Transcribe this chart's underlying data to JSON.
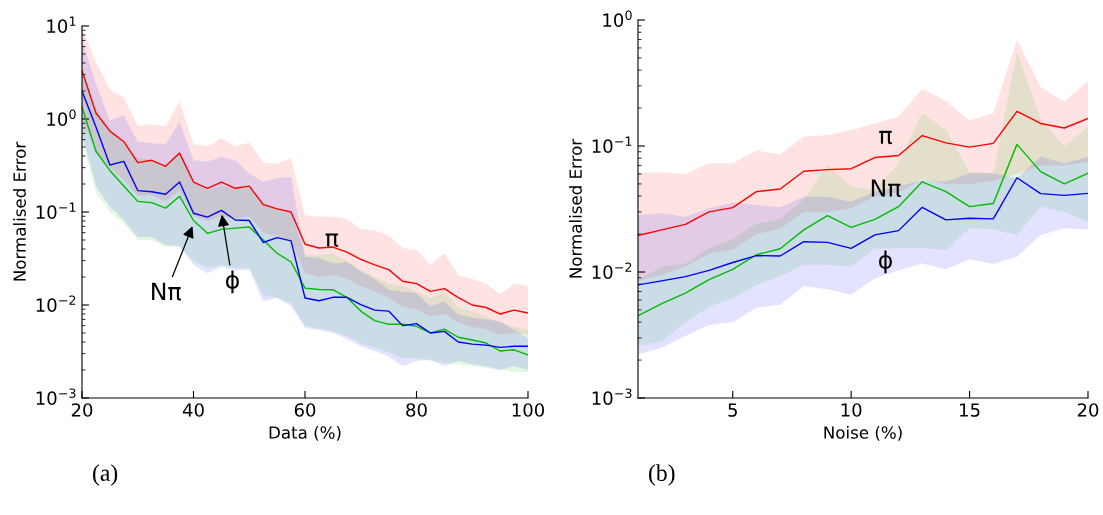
{
  "chart_data": [
    {
      "type": "line",
      "xlabel": "Data (%)",
      "ylabel": "Normalised Error",
      "log": "y",
      "line_style": "solid",
      "marker": "none",
      "x": [
        20,
        22.5,
        25,
        27.5,
        30,
        32.5,
        35,
        37.5,
        40,
        42.5,
        45,
        47.5,
        50,
        52.5,
        55,
        57.5,
        60,
        62.5,
        65,
        67.5,
        70,
        72.5,
        75,
        77.5,
        80,
        82.5,
        85,
        87.5,
        90,
        92.5,
        95,
        97.5,
        100
      ],
      "xlim": [
        20,
        100
      ],
      "xticks": [
        20,
        40,
        60,
        80,
        100
      ],
      "ylim": [
        0.001,
        10
      ],
      "yticks": [
        {
          "value": 0.001,
          "label": "10$^{−3}$"
        },
        {
          "value": 0.01,
          "label": "10$^{−2}$"
        },
        {
          "value": 0.1,
          "label": "10$^{−1}$"
        },
        {
          "value": 1,
          "label": "10$^{0}$"
        },
        {
          "value": 10,
          "label": "10$^{1}$"
        }
      ],
      "series": [
        {
          "color": "#ff0000",
          "values": [
            3.3,
            1.16,
            0.74,
            0.57,
            0.34,
            0.36,
            0.31,
            0.43,
            0.21,
            0.18,
            0.21,
            0.18,
            0.19,
            0.12,
            0.108,
            0.1,
            0.045,
            0.041,
            0.042,
            0.037,
            0.031,
            0.027,
            0.024,
            0.018,
            0.017,
            0.014,
            0.015,
            0.012,
            0.01,
            0.0094,
            0.008,
            0.0088,
            0.0082
          ],
          "upper": [
            9.5,
            4.1,
            2.1,
            1.7,
            0.85,
            0.88,
            0.83,
            1.56,
            0.54,
            0.51,
            0.62,
            0.51,
            0.56,
            0.34,
            0.33,
            0.38,
            0.093,
            0.089,
            0.089,
            0.084,
            0.066,
            0.063,
            0.056,
            0.041,
            0.039,
            0.027,
            0.036,
            0.021,
            0.019,
            0.017,
            0.013,
            0.017,
            0.016
          ],
          "lower": [
            1.0,
            0.45,
            0.3,
            0.22,
            0.15,
            0.15,
            0.13,
            0.17,
            0.09,
            0.08,
            0.09,
            0.085,
            0.09,
            0.06,
            0.055,
            0.05,
            0.022,
            0.02,
            0.021,
            0.019,
            0.016,
            0.014,
            0.012,
            0.0095,
            0.009,
            0.0075,
            0.008,
            0.0065,
            0.0058,
            0.0055,
            0.0048,
            0.005,
            0.0048
          ]
        },
        {
          "color": "#00bb00",
          "values": [
            1.35,
            0.45,
            0.28,
            0.19,
            0.13,
            0.126,
            0.11,
            0.148,
            0.081,
            0.059,
            0.065,
            0.067,
            0.069,
            0.05,
            0.036,
            0.029,
            0.0152,
            0.0147,
            0.0146,
            0.0121,
            0.0086,
            0.0068,
            0.0062,
            0.0062,
            0.0059,
            0.005,
            0.0055,
            0.0045,
            0.0042,
            0.0039,
            0.0032,
            0.0033,
            0.0029
          ],
          "upper": [
            3.5,
            1.3,
            0.75,
            0.55,
            0.38,
            0.36,
            0.32,
            0.45,
            0.21,
            0.17,
            0.19,
            0.18,
            0.19,
            0.13,
            0.11,
            0.1,
            0.035,
            0.034,
            0.036,
            0.03,
            0.024,
            0.02,
            0.017,
            0.016,
            0.014,
            0.012,
            0.014,
            0.0095,
            0.0085,
            0.0075,
            0.0065,
            0.0058,
            0.0055
          ],
          "lower": [
            0.6,
            0.16,
            0.1,
            0.075,
            0.05,
            0.05,
            0.042,
            0.042,
            0.03,
            0.025,
            0.027,
            0.025,
            0.025,
            0.013,
            0.012,
            0.0105,
            0.006,
            0.0056,
            0.0052,
            0.0046,
            0.0039,
            0.0035,
            0.0031,
            0.0027,
            0.0027,
            0.0025,
            0.0024,
            0.0023,
            0.0022,
            0.0021,
            0.002,
            0.0019,
            0.0019
          ]
        },
        {
          "color": "#0000ff",
          "values": [
            2.0,
            0.82,
            0.32,
            0.35,
            0.17,
            0.165,
            0.155,
            0.21,
            0.097,
            0.088,
            0.104,
            0.082,
            0.081,
            0.047,
            0.053,
            0.049,
            0.0119,
            0.0111,
            0.0121,
            0.0121,
            0.0101,
            0.0088,
            0.0086,
            0.006,
            0.0063,
            0.005,
            0.0052,
            0.004,
            0.0038,
            0.0037,
            0.0035,
            0.0036,
            0.0036
          ],
          "upper": [
            7.0,
            2.4,
            0.97,
            1.1,
            0.57,
            0.55,
            0.54,
            0.93,
            0.36,
            0.35,
            0.39,
            0.36,
            0.26,
            0.21,
            0.23,
            0.24,
            0.033,
            0.032,
            0.028,
            0.029,
            0.023,
            0.019,
            0.0146,
            0.014,
            0.0134,
            0.0097,
            0.0109,
            0.0079,
            0.0073,
            0.007,
            0.0067,
            0.0054,
            0.0044
          ],
          "lower": [
            0.7,
            0.19,
            0.114,
            0.082,
            0.054,
            0.054,
            0.044,
            0.043,
            0.027,
            0.022,
            0.026,
            0.0235,
            0.024,
            0.0109,
            0.0119,
            0.0097,
            0.0057,
            0.0054,
            0.005,
            0.0043,
            0.0036,
            0.0032,
            0.0028,
            0.0022,
            0.0025,
            0.0026,
            0.0022,
            0.0025,
            0.0023,
            0.0022,
            0.002,
            0.0022,
            0.002
          ]
        }
      ],
      "annotations": [
        "π",
        {
          "text": "Nπ",
          "x": 40,
          "y": 0.075
        },
        {
          "text": "ϕ",
          "x": 45,
          "y": 0.1
        },
        "(a)"
      ]
    },
    {
      "type": "line",
      "xlabel": "Noise (%)",
      "ylabel": "Normalised Error",
      "log": "y",
      "line_style": "solid",
      "marker": "none",
      "x": [
        1,
        2,
        3,
        4,
        5,
        6,
        7,
        8,
        9,
        10,
        11,
        12,
        13,
        14,
        15,
        16,
        17,
        18,
        19,
        20
      ],
      "xlim": [
        1,
        20
      ],
      "xticks": [
        5,
        10,
        15,
        20
      ],
      "ylim": [
        0.001,
        1
      ],
      "yticks": [
        {
          "value": 0.001,
          "label": "10$^{−3}$"
        },
        {
          "value": 0.01,
          "label": "10$^{−2}$"
        },
        {
          "value": 0.1,
          "label": "10$^{−1}$"
        },
        {
          "value": 1,
          "label": "10$^{0}$"
        }
      ],
      "series": [
        {
          "color": "#ff0000",
          "values": [
            0.0195,
            0.0216,
            0.0239,
            0.03,
            0.0324,
            0.0434,
            0.0456,
            0.063,
            0.065,
            0.066,
            0.081,
            0.084,
            0.121,
            0.106,
            0.098,
            0.105,
            0.188,
            0.151,
            0.139,
            0.165
          ],
          "upper": [
            0.061,
            0.062,
            0.06,
            0.073,
            0.073,
            0.092,
            0.086,
            0.119,
            0.122,
            0.134,
            0.151,
            0.171,
            0.285,
            0.228,
            0.159,
            0.182,
            0.7,
            0.292,
            0.225,
            0.328
          ],
          "lower": [
            0.0085,
            0.0095,
            0.011,
            0.014,
            0.015,
            0.02,
            0.022,
            0.03,
            0.03,
            0.032,
            0.04,
            0.043,
            0.055,
            0.05,
            0.05,
            0.053,
            0.06,
            0.07,
            0.07,
            0.075
          ]
        },
        {
          "color": "#00bb00",
          "values": [
            0.0045,
            0.0056,
            0.0068,
            0.0087,
            0.0105,
            0.0137,
            0.0153,
            0.0216,
            0.028,
            0.0226,
            0.0262,
            0.033,
            0.052,
            0.0434,
            0.033,
            0.035,
            0.103,
            0.0626,
            0.05,
            0.0607
          ],
          "upper": [
            0.0086,
            0.011,
            0.0117,
            0.0154,
            0.0182,
            0.0243,
            0.0262,
            0.0377,
            0.0707,
            0.0476,
            0.0448,
            0.0728,
            0.184,
            0.134,
            0.0626,
            0.0607,
            0.561,
            0.166,
            0.099,
            0.142
          ],
          "lower": [
            0.0026,
            0.0028,
            0.004,
            0.0053,
            0.0062,
            0.0079,
            0.0093,
            0.0114,
            0.0114,
            0.011,
            0.0154,
            0.0154,
            0.0154,
            0.015,
            0.0222,
            0.0218,
            0.0197,
            0.033,
            0.03,
            0.025
          ]
        },
        {
          "color": "#0000ff",
          "values": [
            0.0079,
            0.0085,
            0.0092,
            0.0103,
            0.0119,
            0.0135,
            0.0134,
            0.0174,
            0.0172,
            0.0154,
            0.0197,
            0.0213,
            0.0326,
            0.0259,
            0.0267,
            0.0264,
            0.056,
            0.0419,
            0.0406,
            0.0421
          ],
          "upper": [
            0.0283,
            0.0292,
            0.0275,
            0.032,
            0.0355,
            0.034,
            0.0326,
            0.0396,
            0.0396,
            0.0361,
            0.0434,
            0.0476,
            0.0537,
            0.052,
            0.0607,
            0.0607,
            0.0554,
            0.0823,
            0.0728,
            0.0823
          ],
          "lower": [
            0.0022,
            0.0025,
            0.0031,
            0.0038,
            0.004,
            0.0052,
            0.0055,
            0.0077,
            0.0073,
            0.0066,
            0.0089,
            0.0103,
            0.0117,
            0.0105,
            0.0126,
            0.0116,
            0.0132,
            0.0197,
            0.0222,
            0.0216
          ]
        }
      ],
      "annotations": [
        "π",
        "Nπ",
        "ϕ",
        "(b)"
      ]
    }
  ]
}
